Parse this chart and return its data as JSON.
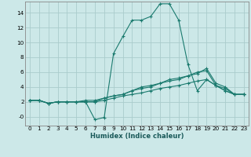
{
  "xlabel": "Humidex (Indice chaleur)",
  "xlim": [
    -0.5,
    23.5
  ],
  "ylim": [
    -1.2,
    15.5
  ],
  "bg_color": "#cce8e8",
  "grid_color": "#aacccc",
  "line_color": "#1a7a6e",
  "x": [
    0,
    1,
    2,
    3,
    4,
    5,
    6,
    7,
    8,
    9,
    10,
    11,
    12,
    13,
    14,
    15,
    16,
    17,
    18,
    19,
    20,
    21,
    22,
    23
  ],
  "series": [
    [
      2.2,
      2.2,
      1.8,
      2.0,
      2.0,
      2.0,
      2.0,
      -0.4,
      -0.1,
      8.5,
      10.8,
      13.0,
      13.0,
      13.5,
      15.2,
      15.2,
      13.0,
      7.0,
      3.5,
      5.0,
      4.2,
      3.5,
      3.0,
      3.0
    ],
    [
      2.2,
      2.2,
      1.8,
      2.0,
      2.0,
      2.0,
      2.2,
      2.2,
      2.5,
      2.8,
      3.0,
      3.5,
      3.8,
      4.0,
      4.5,
      4.8,
      5.0,
      5.5,
      6.0,
      6.2,
      4.2,
      3.8,
      3.0,
      3.0
    ],
    [
      2.2,
      2.2,
      1.8,
      2.0,
      2.0,
      2.0,
      2.0,
      2.0,
      2.5,
      2.8,
      3.0,
      3.5,
      4.0,
      4.2,
      4.5,
      5.0,
      5.2,
      5.5,
      5.8,
      6.5,
      4.5,
      4.0,
      3.0,
      3.0
    ],
    [
      2.2,
      2.2,
      1.8,
      2.0,
      2.0,
      2.0,
      2.0,
      2.0,
      2.2,
      2.5,
      2.8,
      3.0,
      3.2,
      3.5,
      3.8,
      4.0,
      4.2,
      4.5,
      4.8,
      5.0,
      4.2,
      3.5,
      3.0,
      3.0
    ]
  ],
  "yticks": [
    0,
    2,
    4,
    6,
    8,
    10,
    12,
    14
  ],
  "ytick_labels": [
    "-0",
    "2",
    "4",
    "6",
    "8",
    "10",
    "12",
    "14"
  ],
  "xticks": [
    0,
    1,
    2,
    3,
    4,
    5,
    6,
    7,
    8,
    9,
    10,
    11,
    12,
    13,
    14,
    15,
    16,
    17,
    18,
    19,
    20,
    21,
    22,
    23
  ],
  "xlabel_fontsize": 6.0,
  "tick_fontsize": 5.2
}
